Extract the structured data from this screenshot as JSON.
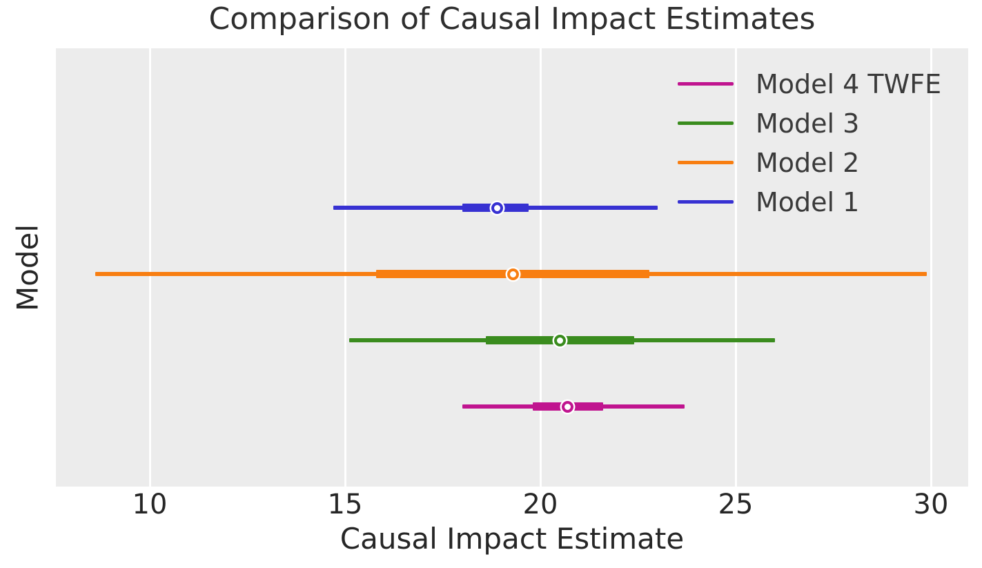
{
  "title": "Comparison of Causal Impact Estimates",
  "x_axis": {
    "label": "Causal Impact Estimate",
    "ticks": [
      10,
      15,
      20,
      25,
      30
    ],
    "min": 7.6,
    "max": 31.0
  },
  "y_axis": {
    "label": "Model"
  },
  "legend": {
    "position": "upper right",
    "frame": false,
    "entries": [
      {
        "label": "Model 4 TWFE",
        "color": "#c0148f"
      },
      {
        "label": "Model 3",
        "color": "#3a8c1e"
      },
      {
        "label": "Model 2",
        "color": "#f87e11"
      },
      {
        "label": "Model 1",
        "color": "#3731d2"
      }
    ]
  },
  "chart_data": {
    "type": "scatter",
    "subtype": "point-interval forest plot (horizontal CIs, thick inner interval, white point estimate marker)",
    "title": "Comparison of Causal Impact Estimates",
    "xlabel": "Causal Impact Estimate",
    "ylabel": "Model",
    "xlim": [
      7.6,
      31.0
    ],
    "x_ticks": [
      10,
      15,
      20,
      25,
      30
    ],
    "grid": "vertical white gridlines on light gray panel",
    "background_color": "#ececec",
    "gridline_color": "#ffffff",
    "y_categories_hidden": true,
    "series": [
      {
        "name": "Model 1",
        "color": "#3731d2",
        "estimate": 18.9,
        "ci_inner": [
          18.0,
          19.7
        ],
        "ci_outer": [
          14.7,
          23.0
        ]
      },
      {
        "name": "Model 2",
        "color": "#f87e11",
        "estimate": 19.3,
        "ci_inner": [
          15.8,
          22.8
        ],
        "ci_outer": [
          8.6,
          29.9
        ]
      },
      {
        "name": "Model 3",
        "color": "#3a8c1e",
        "estimate": 20.5,
        "ci_inner": [
          18.6,
          22.4
        ],
        "ci_outer": [
          15.1,
          26.0
        ]
      },
      {
        "name": "Model 4 TWFE",
        "color": "#c0148f",
        "estimate": 20.7,
        "ci_inner": [
          19.8,
          21.6
        ],
        "ci_outer": [
          18.0,
          23.7
        ]
      }
    ]
  }
}
